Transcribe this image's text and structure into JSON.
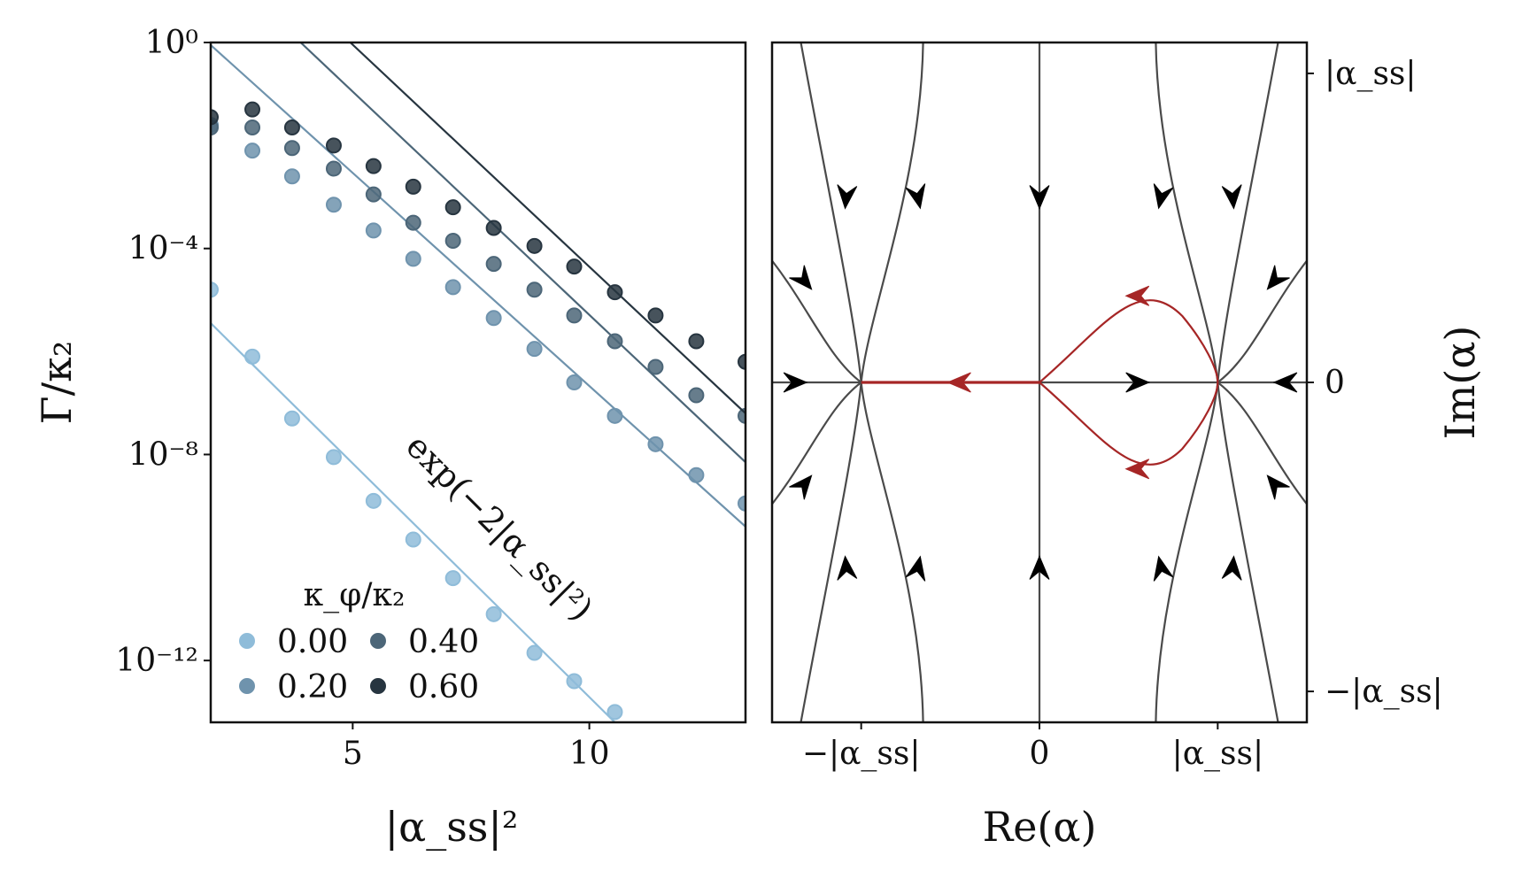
{
  "chart_data": [
    {
      "type": "scatter",
      "title": "",
      "xlabel": "|α_ss|²",
      "ylabel": "Γ/κ₂",
      "yscale": "log",
      "xlim": [
        2,
        13.3
      ],
      "ylim_log10": [
        -13.2,
        0
      ],
      "x_ticks": [
        5,
        10
      ],
      "x_tick_labels": [
        "5",
        "10"
      ],
      "y_ticks_log10": [
        0,
        -4,
        -8,
        -12
      ],
      "y_tick_labels": [
        "10⁰",
        "10⁻⁴",
        "10⁻⁸",
        "10⁻¹²"
      ],
      "annotation": "exp(−2|α_ss|²)",
      "legend_title": "κ_φ/κ₂",
      "legend_position": "bottom-left",
      "series": [
        {
          "name": "0.00",
          "color": "#8fbcd9",
          "x": [
            2,
            2.88,
            3.72,
            4.6,
            5.44,
            6.28,
            7.12,
            7.98,
            8.84,
            9.68,
            10.54
          ],
          "log10_y": [
            -4.8,
            -6.1,
            -7.3,
            -8.05,
            -8.9,
            -9.65,
            -10.4,
            -11.1,
            -11.85,
            -12.4,
            -13.0
          ],
          "fit_line": {
            "x": [
              2,
              10.54
            ],
            "log10_y": [
              -5.45,
              -13.2
            ]
          }
        },
        {
          "name": "0.20",
          "color": "#6f93ad",
          "x": [
            2,
            2.88,
            3.72,
            4.6,
            5.44,
            6.28,
            7.12,
            7.98,
            8.84,
            9.68,
            10.54,
            11.4,
            12.26,
            13.3
          ],
          "log10_y": [
            -1.6,
            -2.1,
            -2.6,
            -3.15,
            -3.65,
            -4.2,
            -4.75,
            -5.35,
            -5.95,
            -6.6,
            -7.25,
            -7.8,
            -8.4,
            -8.95
          ],
          "fit_line": {
            "x": [
              2,
              13.3
            ],
            "log10_y": [
              -0.05,
              -9.4
            ]
          }
        },
        {
          "name": "0.40",
          "color": "#4c6678",
          "x": [
            2,
            2.88,
            3.72,
            4.6,
            5.44,
            6.28,
            7.12,
            7.98,
            8.84,
            9.68,
            10.54,
            11.4,
            12.26,
            13.3
          ],
          "log10_y": [
            -1.65,
            -1.65,
            -2.05,
            -2.45,
            -2.95,
            -3.5,
            -3.85,
            -4.3,
            -4.8,
            -5.3,
            -5.8,
            -6.3,
            -6.85,
            -7.25
          ],
          "fit_line": {
            "x": [
              3.9,
              13.3
            ],
            "log10_y": [
              0,
              -8.15
            ]
          }
        },
        {
          "name": "0.60",
          "color": "#273540",
          "x": [
            2,
            2.88,
            3.72,
            4.6,
            5.44,
            6.28,
            7.12,
            7.98,
            8.84,
            9.68,
            10.54,
            11.4,
            12.26,
            13.3
          ],
          "log10_y": [
            -1.45,
            -1.3,
            -1.65,
            -2.0,
            -2.4,
            -2.8,
            -3.2,
            -3.6,
            -3.95,
            -4.35,
            -4.85,
            -5.3,
            -5.8,
            -6.2
          ],
          "fit_line": {
            "x": [
              4.95,
              13.3
            ],
            "log10_y": [
              0,
              -7.2
            ]
          }
        }
      ]
    },
    {
      "type": "line",
      "title": "",
      "xlabel": "Re(α)",
      "ylabel": "Im(α)",
      "xlim": [
        -1.5,
        1.5
      ],
      "ylim": [
        -1.1,
        1.1
      ],
      "x_ticks": [
        -1,
        0,
        1
      ],
      "x_tick_labels": [
        "−|α_ss|",
        "0",
        "|α_ss|"
      ],
      "y_ticks": [
        1,
        0,
        -1
      ],
      "y_tick_labels": [
        "|α_ss|",
        "0",
        "−|α_ss|"
      ],
      "fixed_points": [
        {
          "re": -1,
          "im": 0,
          "kind": "stable"
        },
        {
          "re": 0,
          "im": 0,
          "kind": "saddle"
        },
        {
          "re": 1,
          "im": 0,
          "kind": "stable"
        }
      ],
      "highlighted_path": {
        "description": "escape path from |α_ss| to −|α_ss| via the saddle at 0",
        "color": "#a62626"
      },
      "streamline_color": "#4a4a4a"
    }
  ]
}
